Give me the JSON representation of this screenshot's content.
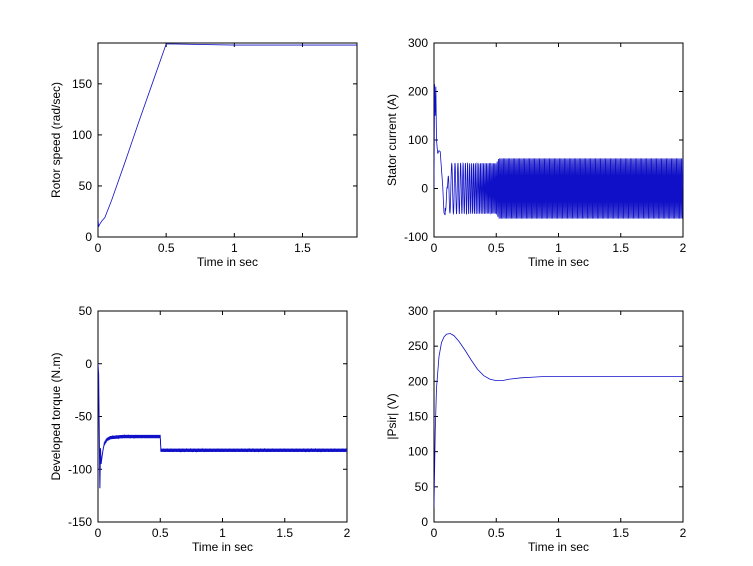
{
  "figure": {
    "background": "#ffffff",
    "line_color": "#1010c8"
  },
  "chart_data": [
    {
      "id": "rotor-speed",
      "type": "line",
      "xlabel": "Time in sec",
      "ylabel": "Rotor speed (rad/sec)",
      "xlim": [
        0,
        1.9
      ],
      "ylim": [
        0,
        190
      ],
      "xticks": [
        0,
        0.5,
        1,
        1.5
      ],
      "xtick_labels": [
        "0",
        "0.5",
        "1",
        "1.5"
      ],
      "yticks": [
        0,
        50,
        100,
        150
      ],
      "ytick_labels": [
        "0",
        "50",
        "100",
        "150"
      ],
      "series": [
        {
          "x": [
            0,
            0.005,
            0.01,
            0.02,
            0.03,
            0.05,
            0.1,
            0.2,
            0.3,
            0.4,
            0.5,
            0.55,
            1.0,
            1.5,
            1.9
          ],
          "y": [
            18,
            10,
            12,
            14,
            16,
            19,
            36,
            74,
            113,
            151,
            189,
            189,
            188,
            188,
            188
          ]
        }
      ]
    },
    {
      "id": "stator-current",
      "type": "line",
      "xlabel": "Time in sec",
      "ylabel": "Stator current (A)",
      "xlim": [
        0,
        2
      ],
      "ylim": [
        -100,
        300
      ],
      "xticks": [
        0,
        0.5,
        1,
        1.5,
        2
      ],
      "xtick_labels": [
        "0",
        "0.5",
        "1",
        "1.5",
        "2"
      ],
      "yticks": [
        -100,
        0,
        100,
        200,
        300
      ],
      "ytick_labels": [
        "-100",
        "0",
        "100",
        "200",
        "300"
      ],
      "series": [
        {
          "x": [
            0,
            0.005,
            0.01,
            0.015,
            0.02,
            0.025,
            0.03,
            0.04,
            0.05,
            0.06,
            0.07,
            0.08,
            0.09,
            0.1,
            0.12,
            0.15,
            0.2,
            0.3,
            0.4,
            0.5,
            0.52,
            1.0,
            1.5,
            2.0
          ],
          "y": [
            0,
            215,
            150,
            210,
            100,
            85,
            72,
            78,
            76,
            40,
            5,
            -50,
            -55,
            -30,
            50,
            52,
            52,
            52,
            52,
            52,
            62,
            62,
            62,
            62
          ]
        }
      ]
    },
    {
      "id": "developed-torque",
      "type": "line",
      "xlabel": "Time in sec",
      "ylabel": "Developed torque (N.m)",
      "xlim": [
        0,
        2
      ],
      "ylim": [
        -150,
        50
      ],
      "xticks": [
        0,
        0.5,
        1,
        1.5,
        2
      ],
      "xtick_labels": [
        "0",
        "0.5",
        "1",
        "1.5",
        "2"
      ],
      "yticks": [
        -150,
        -100,
        -50,
        0,
        50
      ],
      "ytick_labels": [
        "-150",
        "-100",
        "-50",
        "0",
        "50"
      ],
      "series": [
        {
          "x": [
            0,
            0.005,
            0.01,
            0.015,
            0.02,
            0.025,
            0.03,
            0.04,
            0.05,
            0.07,
            0.1,
            0.2,
            0.3,
            0.4,
            0.5,
            0.505,
            1.0,
            1.5,
            2.0
          ],
          "y": [
            0,
            -10,
            -65,
            -118,
            -80,
            -95,
            -90,
            -82,
            -76,
            -72,
            -70,
            -69,
            -69,
            -69,
            -69,
            -82,
            -82,
            -82,
            -82
          ]
        }
      ]
    },
    {
      "id": "psir",
      "type": "line",
      "xlabel": "Time in sec",
      "ylabel": "|Psir| (V)",
      "xlim": [
        0,
        2
      ],
      "ylim": [
        0,
        300
      ],
      "xticks": [
        0,
        0.5,
        1,
        1.5,
        2
      ],
      "xtick_labels": [
        "0",
        "0.5",
        "1",
        "1.5",
        "2"
      ],
      "yticks": [
        0,
        50,
        100,
        150,
        200,
        250,
        300
      ],
      "ytick_labels": [
        "0",
        "50",
        "100",
        "150",
        "200",
        "250",
        "300"
      ],
      "series": [
        {
          "x": [
            0,
            0.01,
            0.02,
            0.04,
            0.06,
            0.08,
            0.1,
            0.13,
            0.16,
            0.2,
            0.25,
            0.3,
            0.35,
            0.4,
            0.45,
            0.5,
            0.55,
            0.6,
            0.7,
            0.8,
            0.9,
            1.0,
            1.5,
            2.0
          ],
          "y": [
            20,
            130,
            190,
            235,
            255,
            263,
            267,
            268,
            265,
            257,
            244,
            230,
            217,
            208,
            203,
            201,
            201,
            203,
            205,
            206,
            207,
            207,
            207,
            207
          ]
        }
      ]
    }
  ]
}
